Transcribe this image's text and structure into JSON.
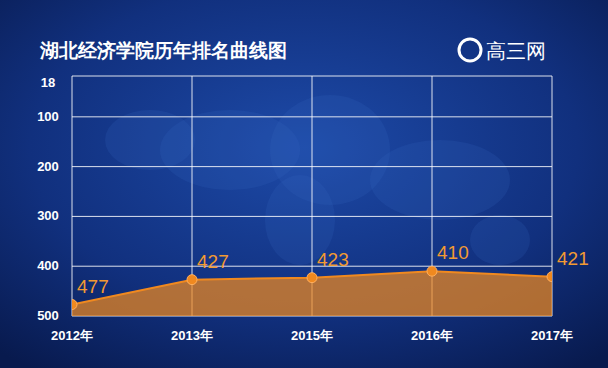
{
  "chart_data": {
    "type": "area",
    "title": "湖北经济学院历年排名曲线图",
    "source": "高三网",
    "categories": [
      "2012年",
      "2013年",
      "2015年",
      "2016年",
      "2017年"
    ],
    "values": [
      477,
      427,
      423,
      410,
      421
    ],
    "color": "#f0891f",
    "ylim": [
      500,
      18
    ],
    "yticks": [
      18,
      100,
      200,
      300,
      400,
      500
    ],
    "grid": true,
    "data_labels": true,
    "marker": "circle"
  }
}
